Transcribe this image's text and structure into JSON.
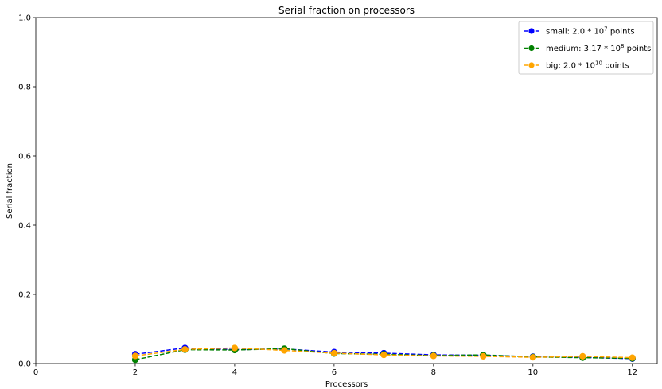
{
  "chart_data": {
    "type": "line",
    "title": "Serial fraction on processors",
    "xlabel": "Processors",
    "ylabel": "Serial fraction",
    "xlim": [
      0,
      12.5
    ],
    "ylim": [
      0,
      1.0
    ],
    "xticks": [
      0,
      2,
      4,
      6,
      8,
      10,
      12
    ],
    "yticks": [
      0.0,
      0.2,
      0.4,
      0.6,
      0.8,
      1.0
    ],
    "grid": false,
    "legend_position": "top-right",
    "x": [
      2,
      3,
      4,
      5,
      6,
      7,
      8,
      9,
      10,
      11,
      12
    ],
    "series": [
      {
        "name": "small: 2.0 * 10^7 points",
        "legend_base": "small: 2.0 * 10",
        "legend_exp": "7",
        "legend_tail": " points",
        "color": "#0000ff",
        "values": [
          0.027,
          0.045,
          0.04,
          0.042,
          0.033,
          0.03,
          0.025,
          0.024,
          0.02,
          0.018,
          0.014
        ]
      },
      {
        "name": "medium: 3.17 * 10^8 points",
        "legend_base": "medium: 3.17 * 10",
        "legend_exp": "8",
        "legend_tail": " points",
        "color": "#008000",
        "values": [
          0.011,
          0.04,
          0.039,
          0.043,
          0.029,
          0.027,
          0.023,
          0.025,
          0.019,
          0.017,
          0.015
        ]
      },
      {
        "name": "big: 2.0 * 10^10 points",
        "legend_base": "big: 2.0 * 10",
        "legend_exp": "10",
        "legend_tail": " points",
        "color": "#ffa500",
        "values": [
          0.022,
          0.041,
          0.045,
          0.038,
          0.03,
          0.025,
          0.022,
          0.021,
          0.018,
          0.021,
          0.017
        ]
      }
    ]
  }
}
